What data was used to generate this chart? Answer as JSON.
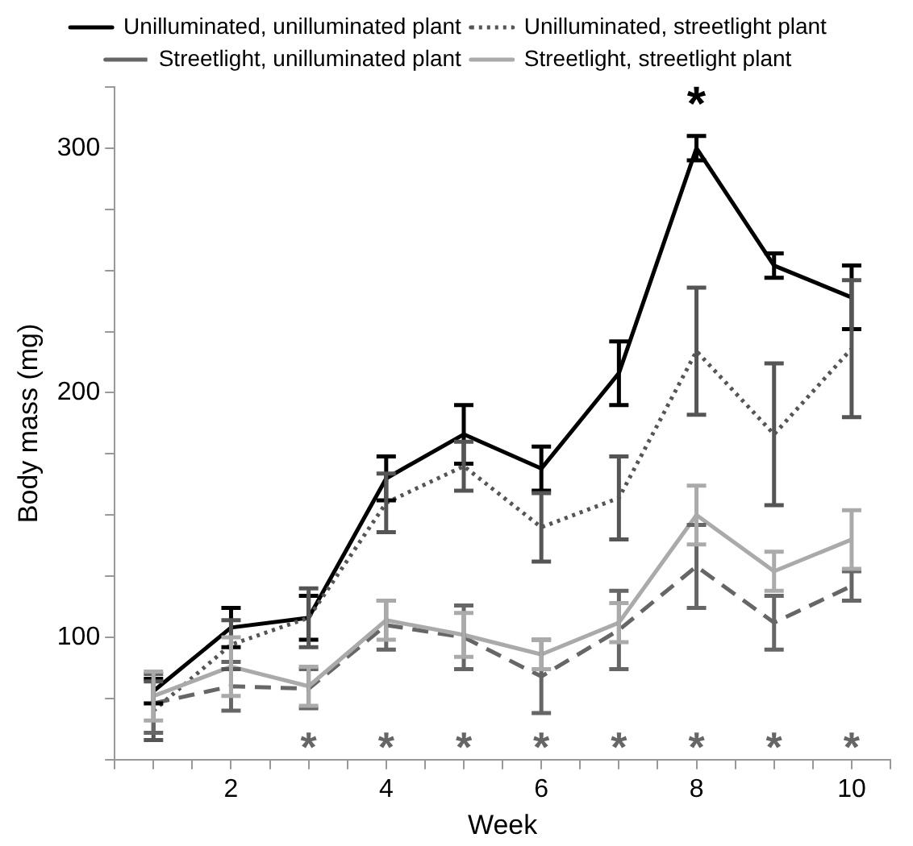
{
  "chart_data": {
    "type": "line",
    "xlabel": "Week",
    "ylabel": "Body mass (mg)",
    "x": [
      1,
      2,
      3,
      4,
      5,
      6,
      7,
      8,
      9,
      10
    ],
    "series": [
      {
        "name": "Unilluminated, unilluminated plant",
        "color": "#000000",
        "line_style": "solid",
        "values": [
          78,
          104,
          108,
          165,
          183,
          169,
          208,
          300,
          252,
          239
        ],
        "errors": [
          5,
          8,
          9,
          9,
          12,
          9,
          13,
          5,
          5,
          13
        ]
      },
      {
        "name": "Unilluminated, streetlight plant",
        "color": "#555555",
        "line_style": "dotted",
        "values": [
          70,
          97,
          108,
          155,
          170,
          145,
          157,
          217,
          183,
          218
        ],
        "errors": [
          12,
          10,
          12,
          12,
          10,
          14,
          17,
          26,
          29,
          28
        ]
      },
      {
        "name": "Streetlight, unilluminated plant",
        "color": "#666666",
        "line_style": "dashed",
        "values": [
          73,
          80,
          79,
          105,
          100,
          84,
          103,
          129,
          106,
          121
        ],
        "errors": [
          12,
          10,
          8,
          10,
          13,
          15,
          16,
          17,
          11,
          6
        ]
      },
      {
        "name": "Streetlight, streetlight plant",
        "color": "#aaaaaa",
        "line_style": "solid",
        "values": [
          76,
          88,
          80,
          107,
          101,
          93,
          106,
          150,
          127,
          140
        ],
        "errors": [
          10,
          12,
          8,
          8,
          9,
          6,
          8,
          12,
          8,
          12
        ]
      }
    ],
    "xlim": [
      0.5,
      10.5
    ],
    "xticks": [
      {
        "value": 0.5,
        "label": null
      },
      {
        "value": 1,
        "label": null
      },
      {
        "value": 1.5,
        "label": null
      },
      2,
      {
        "value": 2.5,
        "label": null
      },
      {
        "value": 3,
        "label": null
      },
      {
        "value": 3.5,
        "label": null
      },
      4,
      {
        "value": 4.5,
        "label": null
      },
      {
        "value": 5,
        "label": null
      },
      {
        "value": 5.5,
        "label": null
      },
      6,
      {
        "value": 6.5,
        "label": null
      },
      {
        "value": 7,
        "label": null
      },
      {
        "value": 7.5,
        "label": null
      },
      8,
      {
        "value": 8.5,
        "label": null
      },
      {
        "value": 9,
        "label": null
      },
      {
        "value": 9.5,
        "label": null
      },
      10,
      {
        "value": 10.5,
        "label": null
      }
    ],
    "ylim": [
      50,
      325
    ],
    "yticks": [
      {
        "value": 50,
        "label": null
      },
      {
        "value": 75,
        "label": null
      },
      100,
      {
        "value": 125,
        "label": null
      },
      {
        "value": 150,
        "label": null
      },
      {
        "value": 175,
        "label": null
      },
      200,
      {
        "value": 225,
        "label": null
      },
      {
        "value": 250,
        "label": null
      },
      {
        "value": 275,
        "label": null
      },
      300,
      {
        "value": 325,
        "label": null
      }
    ],
    "grid": false,
    "legend": "top",
    "marker": "none",
    "annotations": [
      "*",
      "*",
      "*",
      "*",
      "*",
      "*",
      "*",
      "*",
      "*"
    ]
  }
}
